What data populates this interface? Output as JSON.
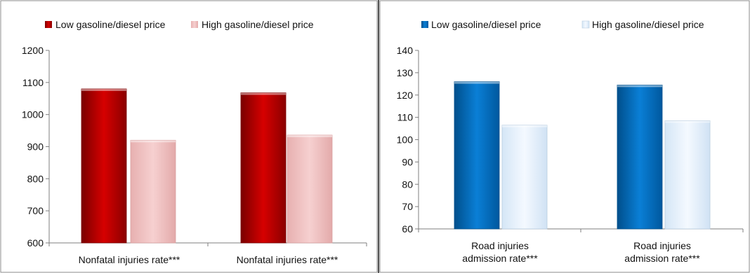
{
  "chart_data": [
    {
      "type": "bar",
      "categories": [
        "Nonfatal injuries rate***",
        "Nonfatal injuries rate***"
      ],
      "series": [
        {
          "name": "Low gasoline/diesel price",
          "values": [
            1080,
            1068
          ]
        },
        {
          "name": "High gasoline/diesel price",
          "values": [
            920,
            936
          ]
        }
      ],
      "ylim": [
        600,
        1200
      ],
      "yticks": [
        600,
        700,
        800,
        900,
        1000,
        1100,
        1200
      ],
      "legend": "top",
      "grid": false,
      "colors": {
        "low": "#C00000",
        "high": "#F2C4C4"
      }
    },
    {
      "type": "bar",
      "categories": [
        "Road injuries admission rate***",
        "Road injuries admission rate***"
      ],
      "series": [
        {
          "name": "Low gasoline/diesel price",
          "values": [
            126,
            124.5
          ]
        },
        {
          "name": "High gasoline/diesel price",
          "values": [
            106.5,
            108.5
          ]
        }
      ],
      "ylim": [
        60,
        140
      ],
      "yticks": [
        60,
        70,
        80,
        90,
        100,
        110,
        120,
        130,
        140
      ],
      "legend": "top",
      "grid": false,
      "colors": {
        "low": "#0070C0",
        "high": "#E6F0FA"
      }
    }
  ]
}
